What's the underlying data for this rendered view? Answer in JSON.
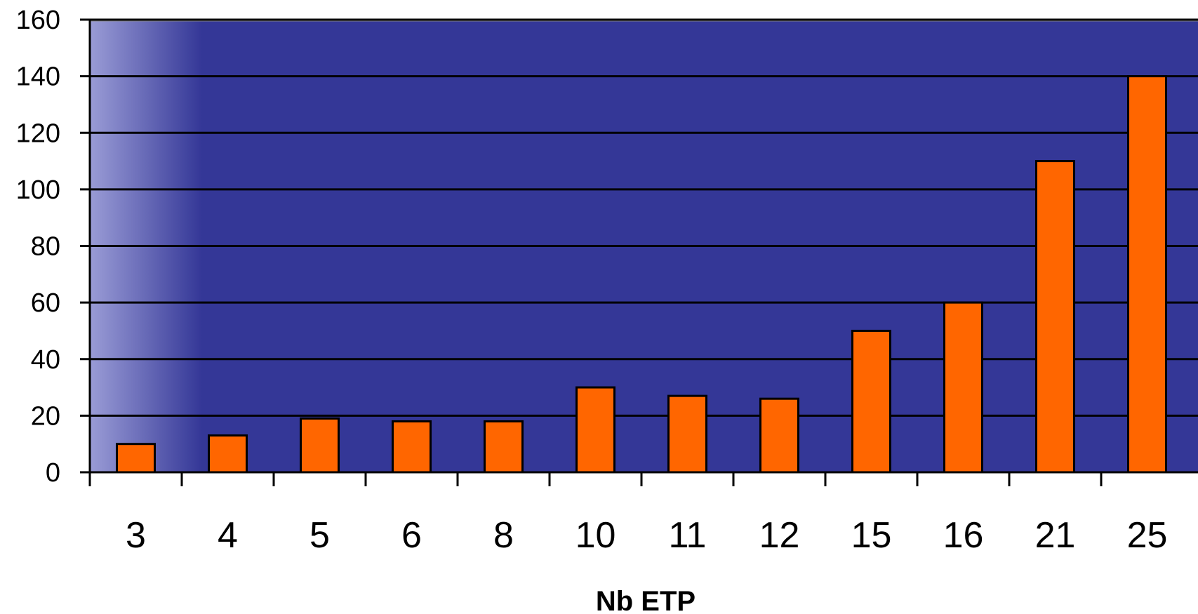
{
  "chart_data": {
    "type": "bar",
    "title": "",
    "xlabel": "Nb ETP",
    "ylabel": "",
    "categories": [
      "3",
      "4",
      "5",
      "6",
      "8",
      "10",
      "11",
      "12",
      "15",
      "16",
      "21",
      "25"
    ],
    "values": [
      10,
      13,
      19,
      18,
      18,
      30,
      27,
      26,
      50,
      60,
      110,
      140
    ],
    "ylim": [
      0,
      160
    ],
    "yticks": [
      "0",
      "20",
      "40",
      "60",
      "80",
      "100",
      "120",
      "140",
      "160"
    ],
    "grid": true,
    "legend": "none",
    "colors": {
      "plot_background": "#343797",
      "plot_gradient_light": "#9a9cd6",
      "bar_fill": "#ff6600",
      "bar_stroke": "#000000",
      "gridline": "#000000"
    }
  }
}
